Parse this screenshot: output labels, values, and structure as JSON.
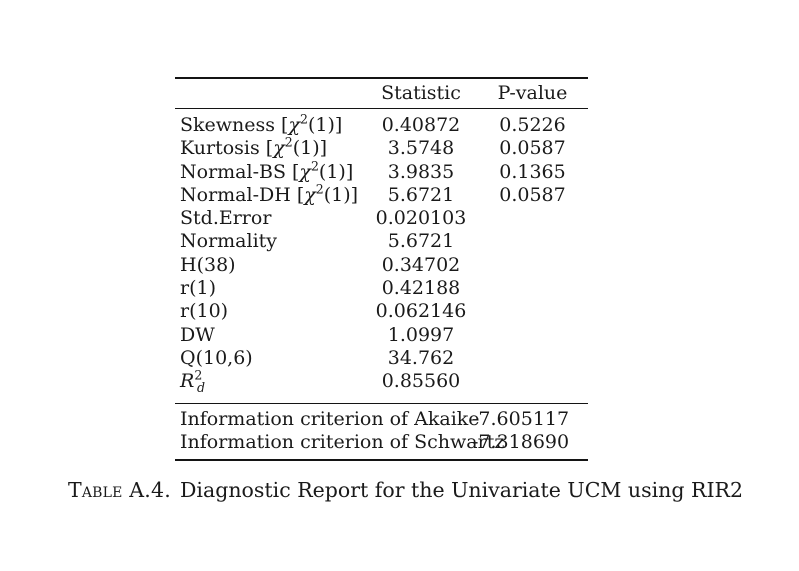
{
  "page": {
    "background": "#ffffff",
    "text_color": "#1a1a1a",
    "rule_color": "#141414"
  },
  "table": {
    "headers": {
      "blank": "",
      "statistic": "Statistic",
      "p_value": "P-value"
    },
    "rows": [
      {
        "label_parts": [
          {
            "t": "Skewness ["
          },
          {
            "t": "χ",
            "i": true
          },
          {
            "t": "2",
            "sup": true
          },
          {
            "t": "(1)]"
          }
        ],
        "statistic": "0.40872",
        "p_value": "0.5226"
      },
      {
        "label_parts": [
          {
            "t": "Kurtosis ["
          },
          {
            "t": "χ",
            "i": true
          },
          {
            "t": "2",
            "sup": true
          },
          {
            "t": "(1)]"
          }
        ],
        "statistic": "3.5748",
        "p_value": "0.0587"
      },
      {
        "label_parts": [
          {
            "t": "Normal-BS ["
          },
          {
            "t": "χ",
            "i": true
          },
          {
            "t": "2",
            "sup": true
          },
          {
            "t": "(1)]"
          }
        ],
        "statistic": "3.9835",
        "p_value": "0.1365"
      },
      {
        "label_parts": [
          {
            "t": "Normal-DH ["
          },
          {
            "t": "χ",
            "i": true
          },
          {
            "t": "2",
            "sup": true
          },
          {
            "t": "(1)]"
          }
        ],
        "statistic": "5.6721",
        "p_value": "0.0587"
      },
      {
        "label_parts": [
          {
            "t": "Std.Error"
          }
        ],
        "statistic": "0.020103",
        "p_value": ""
      },
      {
        "label_parts": [
          {
            "t": "Normality"
          }
        ],
        "statistic": "5.6721",
        "p_value": ""
      },
      {
        "label_parts": [
          {
            "t": "H(38)"
          }
        ],
        "statistic": "0.34702",
        "p_value": ""
      },
      {
        "label_parts": [
          {
            "t": "r(1)"
          }
        ],
        "statistic": "0.42188",
        "p_value": ""
      },
      {
        "label_parts": [
          {
            "t": "r(10)"
          }
        ],
        "statistic": "0.062146",
        "p_value": ""
      },
      {
        "label_parts": [
          {
            "t": "DW"
          }
        ],
        "statistic": "1.0997",
        "p_value": ""
      },
      {
        "label_parts": [
          {
            "t": "Q(10,6)"
          }
        ],
        "statistic": "34.762",
        "p_value": ""
      },
      {
        "label_parts": [
          {
            "t": "R",
            "i": true
          },
          {
            "t": "2",
            "sup": true
          },
          {
            "t": "d",
            "sub": true,
            "i": true,
            "tight": true
          }
        ],
        "statistic": "0.85560",
        "p_value": ""
      }
    ],
    "footer_rows": [
      {
        "label": "Information criterion of Akaike",
        "value": "-7.605117"
      },
      {
        "label": "Information criterion of Schwartz",
        "value": "-7.318690"
      }
    ]
  },
  "caption": {
    "prefix": "Table A.4.",
    "text": "Diagnostic Report for the Univariate UCM using RIR2"
  }
}
